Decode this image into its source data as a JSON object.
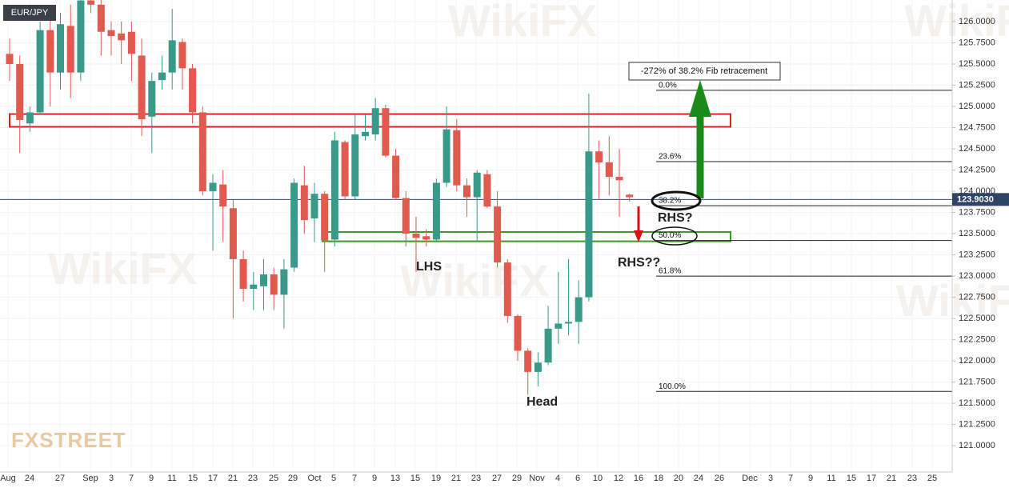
{
  "chart_data": {
    "type": "candlestick",
    "title": "EUR/JPY",
    "logo": "FXSTREET",
    "watermark": "WikiFX",
    "up_color": "#3a9a8a",
    "down_color": "#e05a4e",
    "grid": true,
    "ylim": [
      120.69,
      126.255
    ],
    "yticks": [
      {
        "value": 126,
        "label": "126.0000"
      },
      {
        "value": 125.75,
        "label": "125.7500"
      },
      {
        "value": 125.5,
        "label": "125.5000"
      },
      {
        "value": 125.25,
        "label": "125.2500"
      },
      {
        "value": 125,
        "label": "125.0000"
      },
      {
        "value": 124.75,
        "label": "124.7500"
      },
      {
        "value": 124.5,
        "label": "124.5000"
      },
      {
        "value": 124.25,
        "label": "124.2500"
      },
      {
        "value": 124,
        "label": "124.0000"
      },
      {
        "value": 123.75,
        "label": "123.7500"
      },
      {
        "value": 123.5,
        "label": "123.5000"
      },
      {
        "value": 123.25,
        "label": "123.2500"
      },
      {
        "value": 123,
        "label": "123.0000"
      },
      {
        "value": 122.75,
        "label": "122.7500"
      },
      {
        "value": 122.5,
        "label": "122.5000"
      },
      {
        "value": 122.25,
        "label": "122.2500"
      },
      {
        "value": 122,
        "label": "122.0000"
      },
      {
        "value": 121.75,
        "label": "121.7500"
      },
      {
        "value": 121.5,
        "label": "121.5000"
      },
      {
        "value": 121.25,
        "label": "121.2500"
      },
      {
        "value": 121,
        "label": "121.0000"
      }
    ],
    "categories": [
      "Aug",
      "24",
      "27",
      "Sep",
      "3",
      "7",
      "9",
      "11",
      "15",
      "17",
      "21",
      "23",
      "25",
      "29",
      "Oct",
      "5",
      "7",
      "9",
      "13",
      "15",
      "19",
      "21",
      "23",
      "27",
      "29",
      "Nov",
      "4",
      "6",
      "10",
      "12",
      "16",
      "18",
      "20",
      "24",
      "26",
      "Dec",
      "3",
      "7",
      "9",
      "11",
      "15",
      "17",
      "21",
      "23",
      "25"
    ],
    "candles": [
      {
        "open": 125.62,
        "high": 125.8,
        "low": 125.3,
        "close": 125.5
      },
      {
        "open": 125.5,
        "high": 125.6,
        "low": 124.45,
        "close": 124.84
      },
      {
        "open": 124.8,
        "high": 125.0,
        "low": 124.7,
        "close": 124.93
      },
      {
        "open": 124.93,
        "high": 126.0,
        "low": 124.9,
        "close": 125.9
      },
      {
        "open": 125.9,
        "high": 126.1,
        "low": 125.0,
        "close": 125.4
      },
      {
        "open": 125.4,
        "high": 126.1,
        "low": 125.2,
        "close": 125.97
      },
      {
        "open": 125.95,
        "high": 126.2,
        "low": 125.1,
        "close": 125.4
      },
      {
        "open": 125.4,
        "high": 126.3,
        "low": 125.3,
        "close": 126.25
      },
      {
        "open": 126.25,
        "high": 126.3,
        "low": 126.1,
        "close": 126.2
      },
      {
        "open": 126.2,
        "high": 126.3,
        "low": 125.6,
        "close": 125.88
      },
      {
        "open": 125.9,
        "high": 126.0,
        "low": 125.6,
        "close": 125.83
      },
      {
        "open": 125.86,
        "high": 126.0,
        "low": 125.5,
        "close": 125.78
      },
      {
        "open": 125.88,
        "high": 126.0,
        "low": 125.3,
        "close": 125.62
      },
      {
        "open": 125.6,
        "high": 125.8,
        "low": 124.65,
        "close": 124.85
      },
      {
        "open": 124.88,
        "high": 125.4,
        "low": 124.45,
        "close": 125.3
      },
      {
        "open": 125.31,
        "high": 125.6,
        "low": 125.2,
        "close": 125.4
      },
      {
        "open": 125.4,
        "high": 126.15,
        "low": 125.2,
        "close": 125.78
      },
      {
        "open": 125.76,
        "high": 125.8,
        "low": 125.2,
        "close": 125.45
      },
      {
        "open": 125.45,
        "high": 125.5,
        "low": 124.8,
        "close": 124.93
      },
      {
        "open": 124.93,
        "high": 125.0,
        "low": 123.95,
        "close": 124.0
      },
      {
        "open": 124.0,
        "high": 124.2,
        "low": 123.3,
        "close": 124.1
      },
      {
        "open": 124.08,
        "high": 124.25,
        "low": 123.4,
        "close": 123.82
      },
      {
        "open": 123.8,
        "high": 123.9,
        "low": 122.5,
        "close": 123.2
      },
      {
        "open": 123.2,
        "high": 123.3,
        "low": 122.7,
        "close": 122.85
      },
      {
        "open": 122.85,
        "high": 123.05,
        "low": 122.6,
        "close": 122.9
      },
      {
        "open": 122.88,
        "high": 123.2,
        "low": 122.6,
        "close": 123.02
      },
      {
        "open": 123.02,
        "high": 123.1,
        "low": 122.6,
        "close": 122.78
      },
      {
        "open": 122.78,
        "high": 123.2,
        "low": 122.38,
        "close": 123.08
      },
      {
        "open": 123.1,
        "high": 124.15,
        "low": 123.05,
        "close": 124.1
      },
      {
        "open": 124.07,
        "high": 124.3,
        "low": 123.5,
        "close": 123.66
      },
      {
        "open": 123.68,
        "high": 124.1,
        "low": 123.4,
        "close": 123.97
      },
      {
        "open": 123.97,
        "high": 124.0,
        "low": 123.05,
        "close": 123.42
      },
      {
        "open": 123.43,
        "high": 124.7,
        "low": 123.35,
        "close": 124.6
      },
      {
        "open": 124.58,
        "high": 124.6,
        "low": 123.9,
        "close": 123.94
      },
      {
        "open": 123.94,
        "high": 124.9,
        "low": 123.9,
        "close": 124.67
      },
      {
        "open": 124.65,
        "high": 124.9,
        "low": 124.6,
        "close": 124.7
      },
      {
        "open": 124.67,
        "high": 125.1,
        "low": 124.6,
        "close": 124.98
      },
      {
        "open": 124.98,
        "high": 125.02,
        "low": 124.4,
        "close": 124.42
      },
      {
        "open": 124.42,
        "high": 124.5,
        "low": 123.9,
        "close": 123.92
      },
      {
        "open": 123.92,
        "high": 124.0,
        "low": 123.35,
        "close": 123.5
      },
      {
        "open": 123.5,
        "high": 123.7,
        "low": 123.05,
        "close": 123.45
      },
      {
        "open": 123.47,
        "high": 123.55,
        "low": 123.35,
        "close": 123.43
      },
      {
        "open": 123.43,
        "high": 124.15,
        "low": 123.4,
        "close": 124.1
      },
      {
        "open": 124.1,
        "high": 125.0,
        "low": 124.05,
        "close": 124.73
      },
      {
        "open": 124.72,
        "high": 124.85,
        "low": 124.0,
        "close": 124.07
      },
      {
        "open": 124.07,
        "high": 124.15,
        "low": 123.7,
        "close": 123.93
      },
      {
        "open": 123.93,
        "high": 124.25,
        "low": 123.4,
        "close": 124.22
      },
      {
        "open": 124.2,
        "high": 124.25,
        "low": 123.8,
        "close": 123.82
      },
      {
        "open": 123.82,
        "high": 124.0,
        "low": 123.1,
        "close": 123.16
      },
      {
        "open": 123.16,
        "high": 123.2,
        "low": 122.45,
        "close": 122.53
      },
      {
        "open": 122.53,
        "high": 122.55,
        "low": 122.0,
        "close": 122.12
      },
      {
        "open": 122.12,
        "high": 122.15,
        "low": 121.6,
        "close": 121.87
      },
      {
        "open": 121.87,
        "high": 122.1,
        "low": 121.7,
        "close": 121.98
      },
      {
        "open": 121.98,
        "high": 122.65,
        "low": 121.95,
        "close": 122.38
      },
      {
        "open": 122.38,
        "high": 123.05,
        "low": 122.2,
        "close": 122.44
      },
      {
        "open": 122.44,
        "high": 123.2,
        "low": 122.3,
        "close": 122.46
      },
      {
        "open": 122.46,
        "high": 122.95,
        "low": 122.2,
        "close": 122.75
      },
      {
        "open": 122.75,
        "high": 125.15,
        "low": 122.7,
        "close": 124.47
      },
      {
        "open": 124.47,
        "high": 124.6,
        "low": 123.9,
        "close": 124.34
      },
      {
        "open": 124.34,
        "high": 124.65,
        "low": 123.95,
        "close": 124.17
      },
      {
        "open": 124.17,
        "high": 124.5,
        "low": 123.7,
        "close": 124.13
      },
      {
        "open": 123.96,
        "high": 123.97,
        "low": 123.88,
        "close": 123.93
      }
    ],
    "current_price": {
      "value": 123.903,
      "label": "123.9030"
    },
    "fib_levels": [
      {
        "label": "0.0%",
        "value": 125.19
      },
      {
        "label": "23.6%",
        "value": 124.35
      },
      {
        "label": "38.2%",
        "value": 123.83
      },
      {
        "label": "50.0%",
        "value": 123.42
      },
      {
        "label": "61.8%",
        "value": 123.0
      },
      {
        "label": "100.0%",
        "value": 121.64
      }
    ],
    "zones": [
      {
        "color": "#e02020",
        "top": 124.91,
        "bottom": 124.76
      },
      {
        "color": "#3a9a20",
        "top": 123.52,
        "bottom": 123.41
      }
    ],
    "annotations": {
      "fib_box": "-272% of 38.2% Fib retracement",
      "lhs": "LHS",
      "head": "Head",
      "rhs1": "RHS?",
      "rhs2": "RHS??"
    }
  }
}
